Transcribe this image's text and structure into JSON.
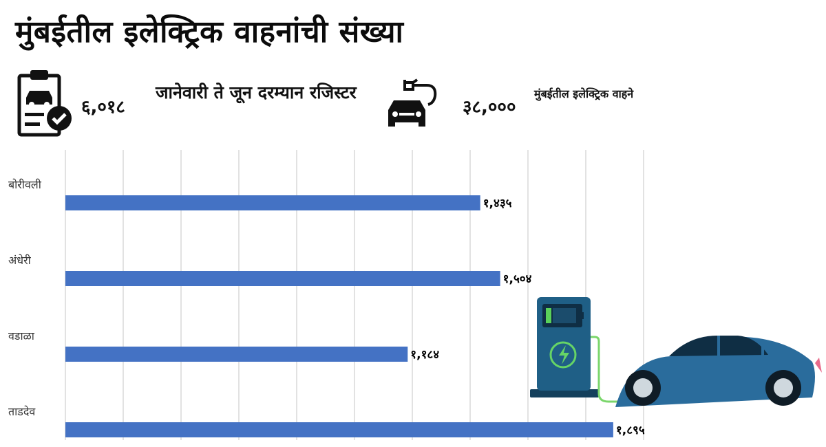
{
  "title": "मुंबईतील इलेक्ट्रिक वाहनांची संख्या",
  "stats": [
    {
      "value": "६,०१८",
      "label": "जानेवारी ते जून दरम्यान रजिस्टर",
      "icon": "clipboard-car-check-icon"
    },
    {
      "value": "३८,०००",
      "label": "मुंबईतील इलेक्ट्रिक वाहने",
      "icon": "electric-car-plug-icon"
    }
  ],
  "chart_data": {
    "type": "bar",
    "orientation": "horizontal",
    "categories": [
      "बोरीवली",
      "अंधेरी",
      "वडाळा",
      "ताडदेव"
    ],
    "values": [
      1435,
      1504,
      1184,
      1895
    ],
    "value_labels": [
      "१,४३५",
      "१,५०४",
      "१,१८४",
      "१,८९५"
    ],
    "xlim": [
      0,
      2000
    ],
    "grid": true,
    "bar_color": "#4472c4"
  },
  "colors": {
    "bar": "#4472c4",
    "grid": "#d9d9d9",
    "station": "#1f5f86",
    "car": "#2a6c9c",
    "cable": "#7bd66b"
  }
}
